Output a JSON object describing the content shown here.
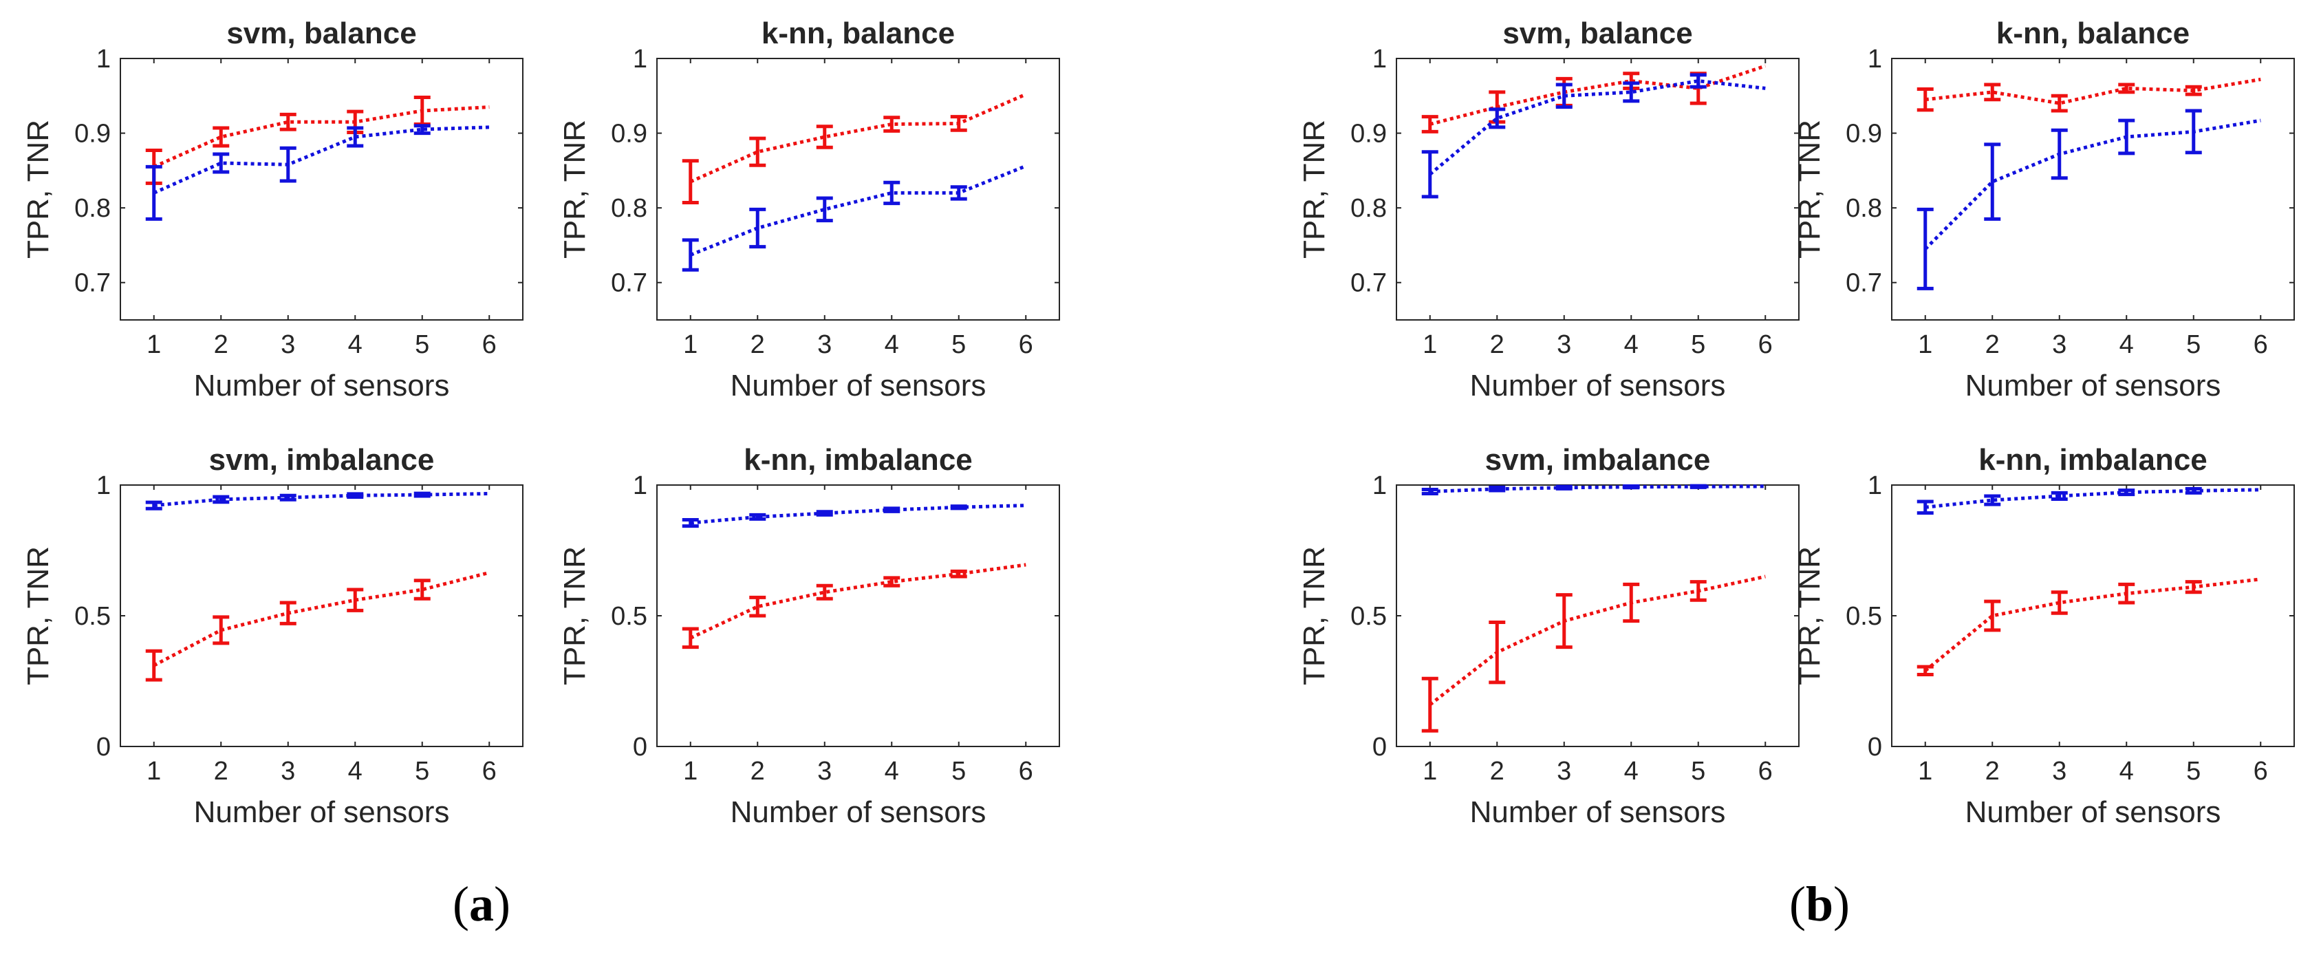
{
  "colors": {
    "tpr": "#ee1111",
    "tnr": "#1111dd",
    "axis": "#262626"
  },
  "panel_labels": [
    {
      "open": "(",
      "letter": "a",
      "close": ")"
    },
    {
      "open": "(",
      "letter": "b",
      "close": ")"
    }
  ],
  "chart_data": [
    {
      "type": "line",
      "group": "a",
      "title": "svm, balance",
      "xlabel": "Number of sensors",
      "ylabel": "TPR, TNR",
      "xlim": [
        0.5,
        6.5
      ],
      "ylim": [
        0.65,
        1.0
      ],
      "x": [
        1,
        2,
        3,
        4,
        5,
        6
      ],
      "xticks": [
        "1",
        "2",
        "3",
        "4",
        "5",
        "6"
      ],
      "yticks": [
        0.7,
        0.8,
        0.9,
        1.0
      ],
      "ytick_labels": [
        "0.7",
        "0.8",
        "0.9",
        "1"
      ],
      "series": [
        {
          "name": "TPR",
          "color_key": "tpr",
          "values": [
            0.855,
            0.895,
            0.915,
            0.915,
            0.93,
            0.935
          ],
          "err": [
            0.022,
            0.012,
            0.01,
            0.014,
            0.018,
            0
          ]
        },
        {
          "name": "TNR",
          "color_key": "tnr",
          "values": [
            0.82,
            0.86,
            0.858,
            0.895,
            0.905,
            0.908
          ],
          "err": [
            0.035,
            0.012,
            0.022,
            0.012,
            0.005,
            0
          ]
        }
      ]
    },
    {
      "type": "line",
      "group": "a",
      "title": "k-nn, balance",
      "xlabel": "Number of sensors",
      "ylabel": "TPR, TNR",
      "xlim": [
        0.5,
        6.5
      ],
      "ylim": [
        0.65,
        1.0
      ],
      "x": [
        1,
        2,
        3,
        4,
        5,
        6
      ],
      "xticks": [
        "1",
        "2",
        "3",
        "4",
        "5",
        "6"
      ],
      "yticks": [
        0.7,
        0.8,
        0.9,
        1.0
      ],
      "ytick_labels": [
        "0.7",
        "0.8",
        "0.9",
        "1"
      ],
      "series": [
        {
          "name": "TPR",
          "color_key": "tpr",
          "values": [
            0.835,
            0.875,
            0.895,
            0.912,
            0.913,
            0.952
          ],
          "err": [
            0.028,
            0.018,
            0.014,
            0.009,
            0.009,
            0
          ]
        },
        {
          "name": "TNR",
          "color_key": "tnr",
          "values": [
            0.737,
            0.773,
            0.798,
            0.82,
            0.82,
            0.856
          ],
          "err": [
            0.02,
            0.025,
            0.015,
            0.014,
            0.008,
            0
          ]
        }
      ]
    },
    {
      "type": "line",
      "group": "b",
      "title": "svm, balance",
      "xlabel": "Number of sensors",
      "ylabel": "TPR, TNR",
      "xlim": [
        0.5,
        6.5
      ],
      "ylim": [
        0.65,
        1.0
      ],
      "x": [
        1,
        2,
        3,
        4,
        5,
        6
      ],
      "xticks": [
        "1",
        "2",
        "3",
        "4",
        "5",
        "6"
      ],
      "yticks": [
        0.7,
        0.8,
        0.9,
        1.0
      ],
      "ytick_labels": [
        "0.7",
        "0.8",
        "0.9",
        "1"
      ],
      "series": [
        {
          "name": "TPR",
          "color_key": "tpr",
          "values": [
            0.912,
            0.935,
            0.955,
            0.97,
            0.96,
            0.99
          ],
          "err": [
            0.01,
            0.02,
            0.018,
            0.01,
            0.02,
            0
          ]
        },
        {
          "name": "TNR",
          "color_key": "tnr",
          "values": [
            0.845,
            0.92,
            0.95,
            0.955,
            0.97,
            0.96
          ],
          "err": [
            0.03,
            0.012,
            0.015,
            0.012,
            0.008,
            0
          ]
        }
      ]
    },
    {
      "type": "line",
      "group": "b",
      "title": "k-nn, balance",
      "xlabel": "Number of sensors",
      "ylabel": "TPR, TNR",
      "xlim": [
        0.5,
        6.5
      ],
      "ylim": [
        0.65,
        1.0
      ],
      "x": [
        1,
        2,
        3,
        4,
        5,
        6
      ],
      "xticks": [
        "1",
        "2",
        "3",
        "4",
        "5",
        "6"
      ],
      "yticks": [
        0.7,
        0.8,
        0.9,
        1.0
      ],
      "ytick_labels": [
        "0.7",
        "0.8",
        "0.9",
        "1"
      ],
      "series": [
        {
          "name": "TPR",
          "color_key": "tpr",
          "values": [
            0.945,
            0.955,
            0.94,
            0.96,
            0.957,
            0.972
          ],
          "err": [
            0.014,
            0.01,
            0.01,
            0.005,
            0.005,
            0
          ]
        },
        {
          "name": "TNR",
          "color_key": "tnr",
          "values": [
            0.745,
            0.835,
            0.872,
            0.895,
            0.902,
            0.917
          ],
          "err": [
            0.053,
            0.05,
            0.032,
            0.022,
            0.028,
            0
          ]
        }
      ]
    },
    {
      "type": "line",
      "group": "a",
      "title": "svm, imbalance",
      "xlabel": "Number of sensors",
      "ylabel": "TPR, TNR",
      "xlim": [
        0.5,
        6.5
      ],
      "ylim": [
        0,
        1.0
      ],
      "x": [
        1,
        2,
        3,
        4,
        5,
        6
      ],
      "xticks": [
        "1",
        "2",
        "3",
        "4",
        "5",
        "6"
      ],
      "yticks": [
        0,
        0.5,
        1.0
      ],
      "ytick_labels": [
        "0",
        "0.5",
        "1"
      ],
      "series": [
        {
          "name": "TPR",
          "color_key": "tpr",
          "values": [
            0.31,
            0.445,
            0.51,
            0.56,
            0.6,
            0.665
          ],
          "err": [
            0.055,
            0.05,
            0.04,
            0.04,
            0.035,
            0
          ]
        },
        {
          "name": "TNR",
          "color_key": "tnr",
          "values": [
            0.922,
            0.945,
            0.952,
            0.96,
            0.963,
            0.967
          ],
          "err": [
            0.012,
            0.01,
            0.008,
            0.006,
            0.005,
            0
          ]
        }
      ]
    },
    {
      "type": "line",
      "group": "a",
      "title": "k-nn, imbalance",
      "xlabel": "Number of sensors",
      "ylabel": "TPR, TNR",
      "xlim": [
        0.5,
        6.5
      ],
      "ylim": [
        0,
        1.0
      ],
      "x": [
        1,
        2,
        3,
        4,
        5,
        6
      ],
      "xticks": [
        "1",
        "2",
        "3",
        "4",
        "5",
        "6"
      ],
      "yticks": [
        0,
        0.5,
        1.0
      ],
      "ytick_labels": [
        "0",
        "0.5",
        "1"
      ],
      "series": [
        {
          "name": "TPR",
          "color_key": "tpr",
          "values": [
            0.415,
            0.535,
            0.59,
            0.63,
            0.66,
            0.695
          ],
          "err": [
            0.035,
            0.035,
            0.025,
            0.015,
            0.01,
            0
          ]
        },
        {
          "name": "TNR",
          "color_key": "tnr",
          "values": [
            0.855,
            0.878,
            0.892,
            0.905,
            0.915,
            0.922
          ],
          "err": [
            0.012,
            0.008,
            0.006,
            0.006,
            0.004,
            0
          ]
        }
      ]
    },
    {
      "type": "line",
      "group": "b",
      "title": "svm, imbalance",
      "xlabel": "Number of sensors",
      "ylabel": "TPR, TNR",
      "xlim": [
        0.5,
        6.5
      ],
      "ylim": [
        0,
        1.0
      ],
      "x": [
        1,
        2,
        3,
        4,
        5,
        6
      ],
      "xticks": [
        "1",
        "2",
        "3",
        "4",
        "5",
        "6"
      ],
      "yticks": [
        0,
        0.5,
        1.0
      ],
      "ytick_labels": [
        "0",
        "0.5",
        "1"
      ],
      "series": [
        {
          "name": "TPR",
          "color_key": "tpr",
          "values": [
            0.16,
            0.36,
            0.48,
            0.55,
            0.595,
            0.65
          ],
          "err": [
            0.1,
            0.115,
            0.1,
            0.07,
            0.035,
            0
          ]
        },
        {
          "name": "TNR",
          "color_key": "tnr",
          "values": [
            0.975,
            0.985,
            0.99,
            0.993,
            0.994,
            0.995
          ],
          "err": [
            0.008,
            0.006,
            0.004,
            0.003,
            0.003,
            0
          ]
        }
      ]
    },
    {
      "type": "line",
      "group": "b",
      "title": "k-nn, imbalance",
      "xlabel": "Number of sensors",
      "ylabel": "TPR, TNR",
      "xlim": [
        0.5,
        6.5
      ],
      "ylim": [
        0,
        1.0
      ],
      "x": [
        1,
        2,
        3,
        4,
        5,
        6
      ],
      "xticks": [
        "1",
        "2",
        "3",
        "4",
        "5",
        "6"
      ],
      "yticks": [
        0,
        0.5,
        1.0
      ],
      "ytick_labels": [
        "0",
        "0.5",
        "1"
      ],
      "series": [
        {
          "name": "TPR",
          "color_key": "tpr",
          "values": [
            0.29,
            0.5,
            0.55,
            0.585,
            0.61,
            0.64
          ],
          "err": [
            0.015,
            0.055,
            0.04,
            0.035,
            0.02,
            0
          ]
        },
        {
          "name": "TNR",
          "color_key": "tnr",
          "values": [
            0.915,
            0.942,
            0.958,
            0.972,
            0.978,
            0.982
          ],
          "err": [
            0.022,
            0.016,
            0.012,
            0.008,
            0.008,
            0
          ]
        }
      ]
    }
  ]
}
